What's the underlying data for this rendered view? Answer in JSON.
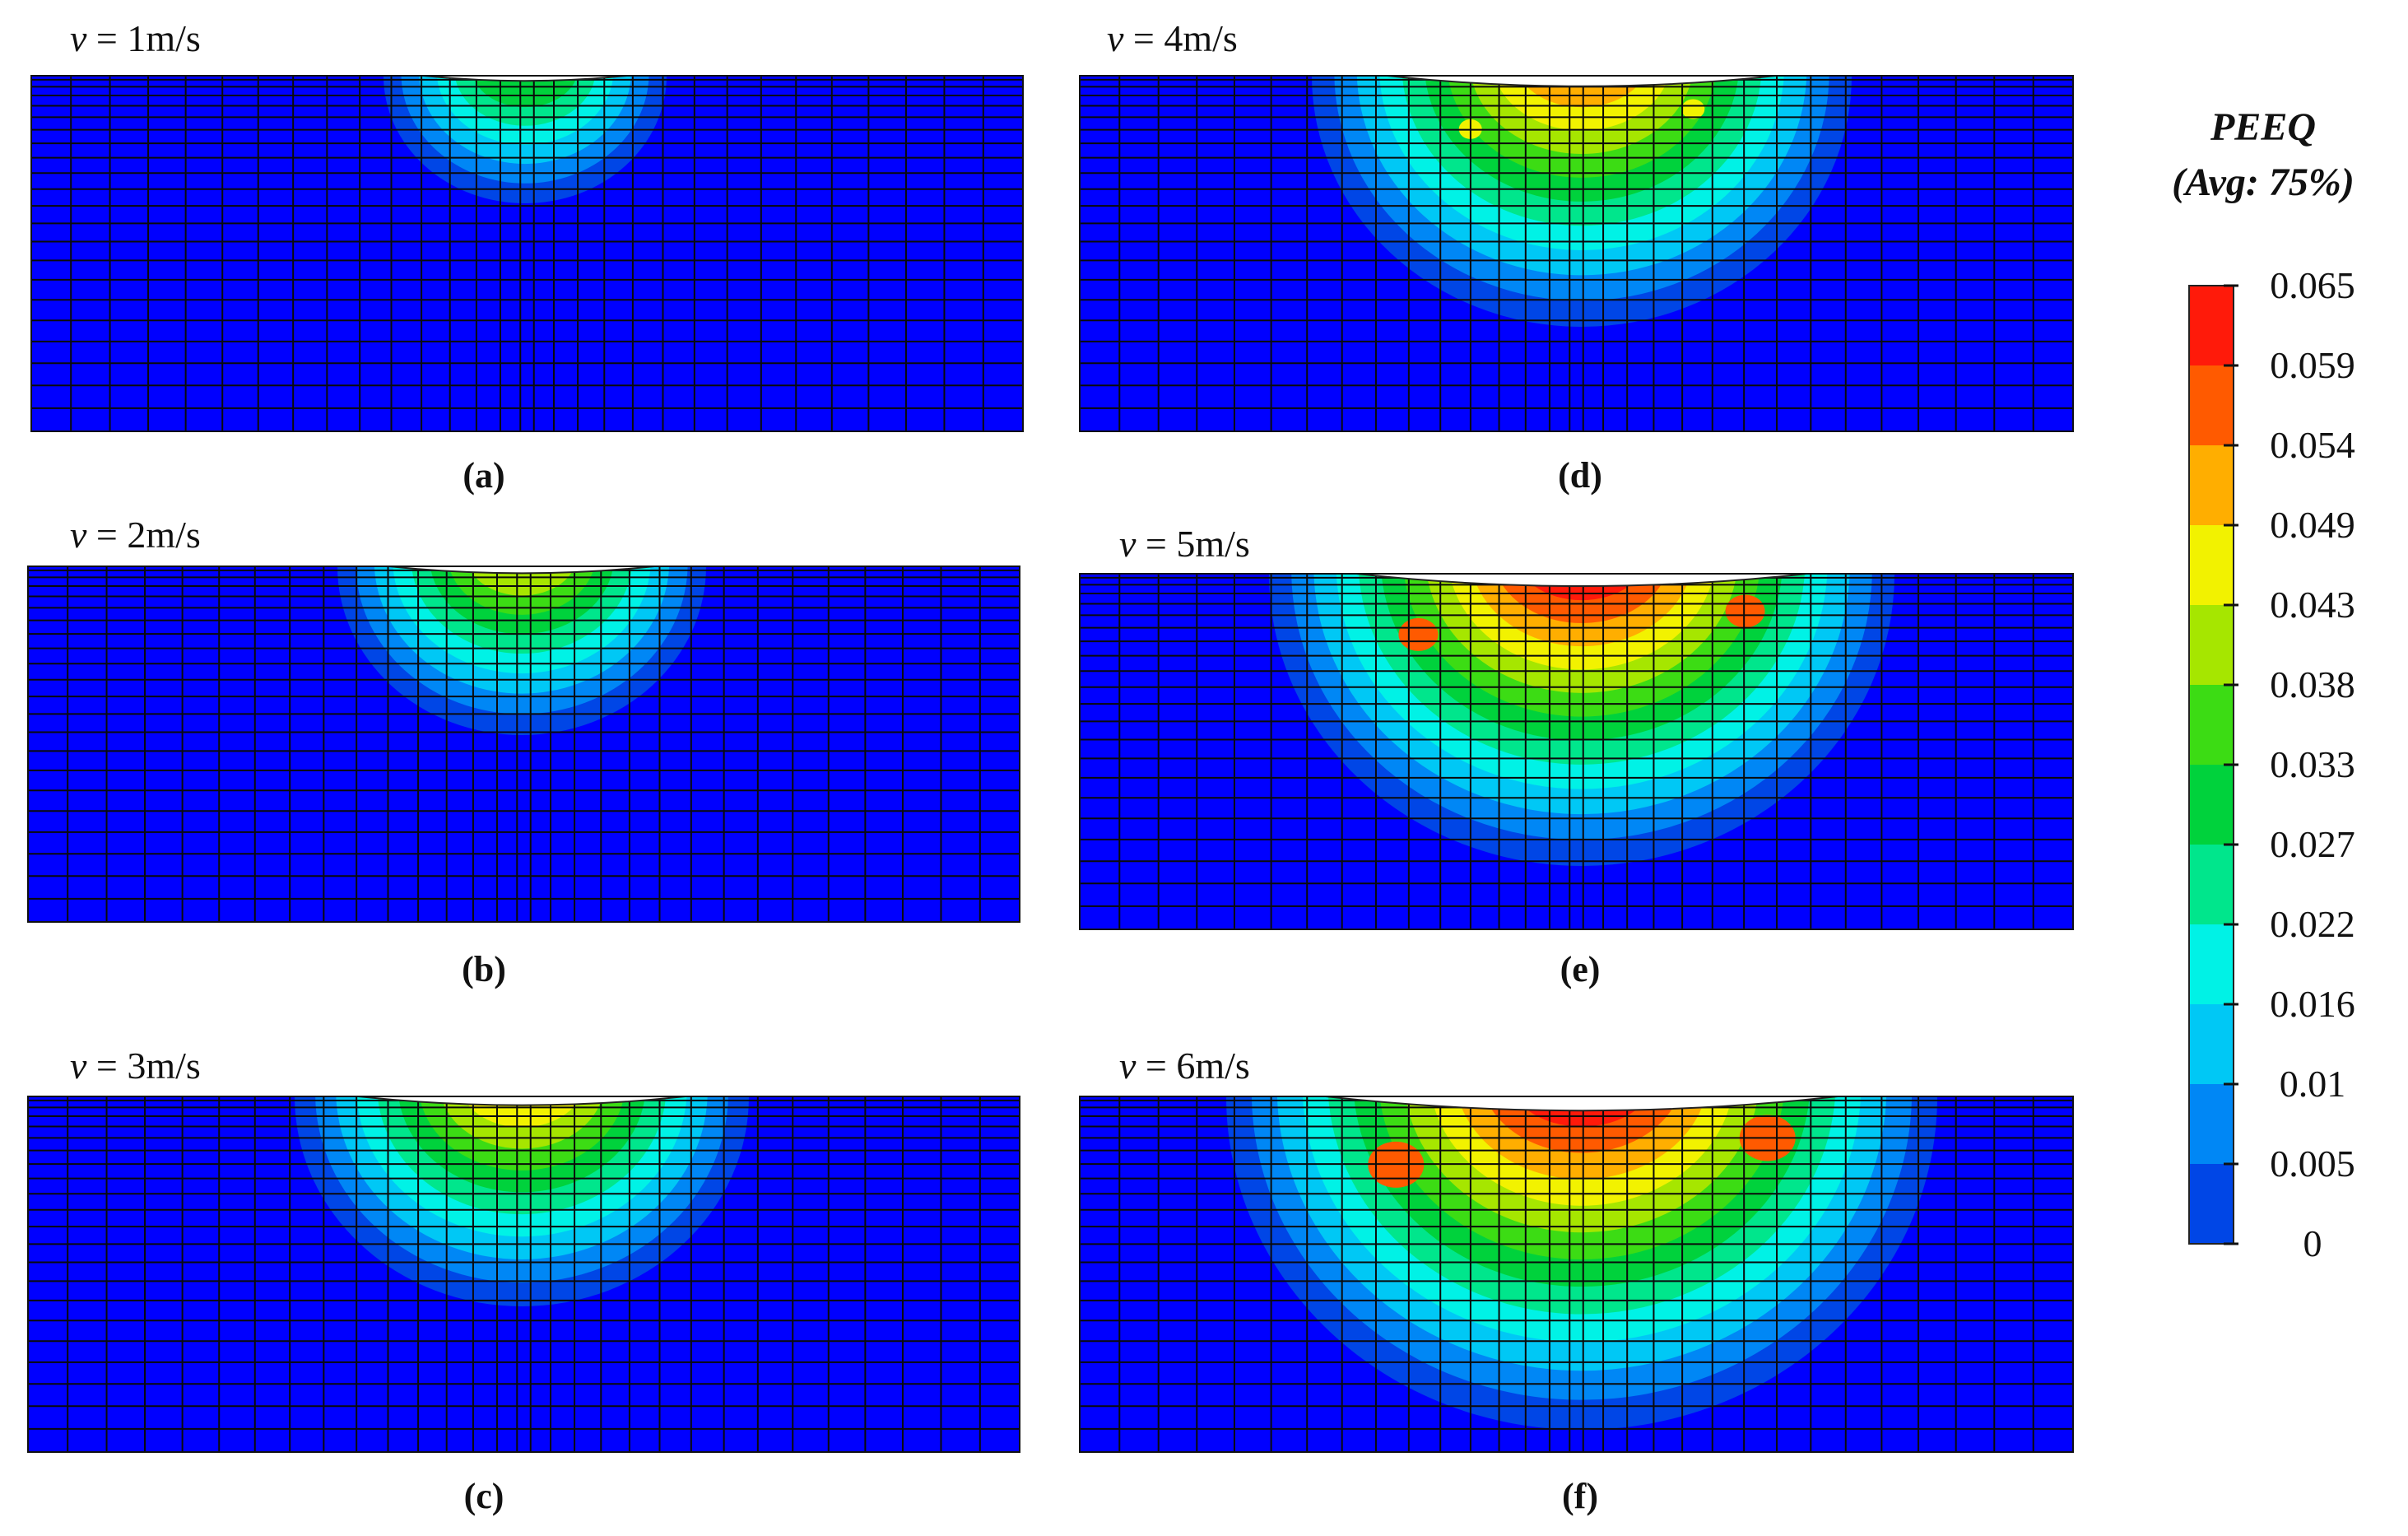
{
  "legend": {
    "title_line1": "PEEQ",
    "title_line2": "(Avg: 75%)",
    "values": [
      "0.065",
      "0.059",
      "0.054",
      "0.049",
      "0.043",
      "0.038",
      "0.033",
      "0.027",
      "0.022",
      "0.016",
      "0.01",
      "0.005",
      "0"
    ],
    "colors": [
      "#ff1a0a",
      "#ff5a00",
      "#ffae00",
      "#f2f200",
      "#a6e600",
      "#3cdc14",
      "#00d23c",
      "#00e68c",
      "#00f2e6",
      "#00c8f5",
      "#0087f5",
      "#0046e6",
      "#0000ff"
    ]
  },
  "panels": [
    {
      "caption": "(a)",
      "velocity_symbol": "v",
      "velocity_text": " = 1m/s",
      "speed": 1
    },
    {
      "caption": "(b)",
      "velocity_symbol": "v",
      "velocity_text": " = 2m/s",
      "speed": 2
    },
    {
      "caption": "(c)",
      "velocity_symbol": "v",
      "velocity_text": " = 3m/s",
      "speed": 3
    },
    {
      "caption": "(d)",
      "velocity_symbol": "v",
      "velocity_text": " = 4m/s",
      "speed": 4
    },
    {
      "caption": "(e)",
      "velocity_symbol": "v",
      "velocity_text": " = 5m/s",
      "speed": 5
    },
    {
      "caption": "(f)",
      "velocity_symbol": "v",
      "velocity_text": " = 6m/s",
      "speed": 6
    }
  ]
}
